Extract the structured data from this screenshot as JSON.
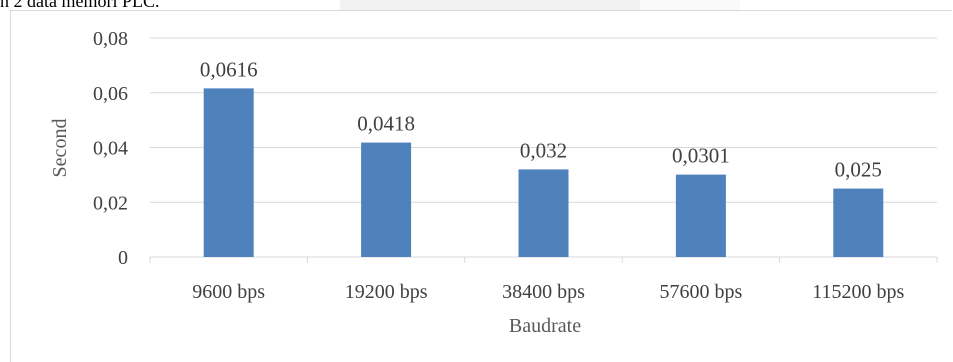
{
  "caption_fragment": "n 2 data memori PLC.",
  "chart_data": {
    "type": "bar",
    "categories": [
      "9600 bps",
      "19200 bps",
      "38400 bps",
      "57600 bps",
      "115200 bps"
    ],
    "values": [
      0.0616,
      0.0418,
      0.032,
      0.0301,
      0.025
    ],
    "value_labels": [
      "0,0616",
      "0,0418",
      "0,032",
      "0,0301",
      "0,025"
    ],
    "ylim": [
      0,
      0.08
    ],
    "yticks": [
      0,
      0.02,
      0.04,
      0.06,
      0.08
    ],
    "ytick_labels": [
      "0",
      "0,02",
      "0,04",
      "0,06",
      "0,08"
    ],
    "xlabel": "Baudrate",
    "ylabel": "Second",
    "grid": true,
    "legend": "none",
    "colors": {
      "bar": "#4f81bd",
      "grid": "#d9d9d9",
      "text": "#404040"
    }
  }
}
